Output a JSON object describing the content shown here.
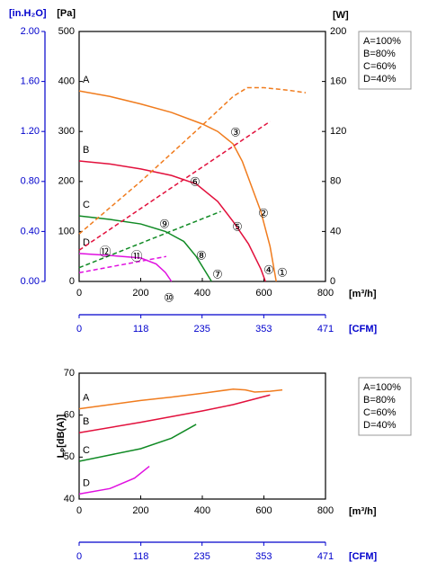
{
  "chart_data": [
    {
      "type": "line",
      "y_label": "[Pa]",
      "y3_label": "[in.H₂O]",
      "y2_label": "[W]",
      "x_label": "[m³/h]",
      "x2_label": "[CFM]",
      "xlim": [
        0,
        800
      ],
      "xticks": [
        0,
        200,
        400,
        600,
        800
      ],
      "x2lim": [
        0,
        471
      ],
      "x2ticks": [
        0,
        118,
        235,
        353,
        471
      ],
      "ylim": [
        0,
        500
      ],
      "yticks": [
        0,
        100,
        200,
        300,
        400,
        500
      ],
      "y2lim": [
        0,
        200
      ],
      "y2ticks": [
        0,
        40,
        80,
        120,
        160,
        200
      ],
      "y3lim": [
        0,
        2
      ],
      "y3ticks": [
        {
          "value": 0,
          "label": "0.00"
        },
        {
          "value": 0.4,
          "label": "0.40"
        },
        {
          "value": 0.8,
          "label": "0.80"
        },
        {
          "value": 1.2,
          "label": "1.20"
        },
        {
          "value": 1.6,
          "label": "1.60"
        },
        {
          "value": 2,
          "label": "2.00"
        }
      ],
      "series": [
        {
          "name": "A=100%",
          "label": "A",
          "color": "#f07c1e",
          "x": [
            0,
            100,
            200,
            300,
            400,
            450,
            500,
            530,
            560,
            590,
            620,
            640
          ],
          "values": [
            381,
            370,
            355,
            338,
            315,
            300,
            275,
            240,
            190,
            140,
            70,
            0
          ]
        },
        {
          "name": "B=80%",
          "label": "B",
          "color": "#e2103c",
          "x": [
            0,
            100,
            200,
            300,
            380,
            450,
            500,
            550,
            590,
            605
          ],
          "values": [
            241,
            235,
            225,
            212,
            195,
            160,
            120,
            75,
            25,
            0
          ]
        },
        {
          "name": "C=60%",
          "label": "C",
          "color": "#108a24",
          "x": [
            0,
            100,
            200,
            280,
            340,
            380,
            410,
            430
          ],
          "values": [
            131,
            124,
            115,
            100,
            80,
            50,
            20,
            0
          ]
        },
        {
          "name": "D=40%",
          "label": "D",
          "color": "#e010e0",
          "x": [
            0,
            100,
            200,
            250,
            280,
            300
          ],
          "values": [
            56,
            52,
            47,
            35,
            18,
            0
          ]
        },
        {
          "axis": "y2",
          "dashed": true,
          "color": "#f07c1e",
          "x": [
            0,
            200,
            400,
            500,
            546,
            600,
            680,
            736
          ],
          "values": [
            38,
            80,
            125,
            148,
            155,
            155,
            153,
            151
          ]
        },
        {
          "axis": "y2",
          "dashed": true,
          "color": "#e2103c",
          "x": [
            0,
            300,
            620
          ],
          "values": [
            25,
            75,
            128
          ]
        },
        {
          "axis": "y2",
          "dashed": true,
          "color": "#108a24",
          "x": [
            0,
            460
          ],
          "values": [
            11,
            56
          ]
        },
        {
          "axis": "y2",
          "dashed": true,
          "color": "#e010e0",
          "x": [
            0,
            283
          ],
          "values": [
            7,
            20
          ]
        }
      ],
      "annotations": [
        "①",
        "②",
        "③",
        "④",
        "⑤",
        "⑥",
        "⑦",
        "⑧",
        "⑨",
        "⑩",
        "⑪",
        "⑫"
      ]
    },
    {
      "type": "line",
      "y_label": "Lₚ[dB(A)]",
      "x_label": "[m³/h]",
      "x2_label": "[CFM]",
      "xlim": [
        0,
        800
      ],
      "xticks": [
        0,
        200,
        400,
        600,
        800
      ],
      "x2lim": [
        0,
        471
      ],
      "x2ticks": [
        0,
        118,
        235,
        353,
        471
      ],
      "ylim": [
        40,
        70
      ],
      "yticks": [
        40,
        50,
        60,
        70
      ],
      "series": [
        {
          "name": "A=100%",
          "label": "A",
          "color": "#f07c1e",
          "x": [
            0,
            100,
            200,
            300,
            400,
            500,
            540,
            570,
            620,
            660
          ],
          "values": [
            61.5,
            62.5,
            63.5,
            64.3,
            65.2,
            66.2,
            66.0,
            65.5,
            65.7,
            66.0
          ]
        },
        {
          "name": "B=80%",
          "label": "B",
          "color": "#e2103c",
          "x": [
            0,
            200,
            400,
            500,
            620
          ],
          "values": [
            55.8,
            58.3,
            61,
            62.5,
            64.8
          ]
        },
        {
          "name": "C=60%",
          "label": "C",
          "color": "#108a24",
          "x": [
            0,
            100,
            200,
            300,
            380
          ],
          "values": [
            49,
            50.5,
            52,
            54.5,
            57.8
          ]
        },
        {
          "name": "D=40%",
          "label": "D",
          "color": "#e010e0",
          "x": [
            0,
            100,
            180,
            228
          ],
          "values": [
            41.2,
            42.5,
            45,
            47.8
          ]
        }
      ]
    }
  ]
}
